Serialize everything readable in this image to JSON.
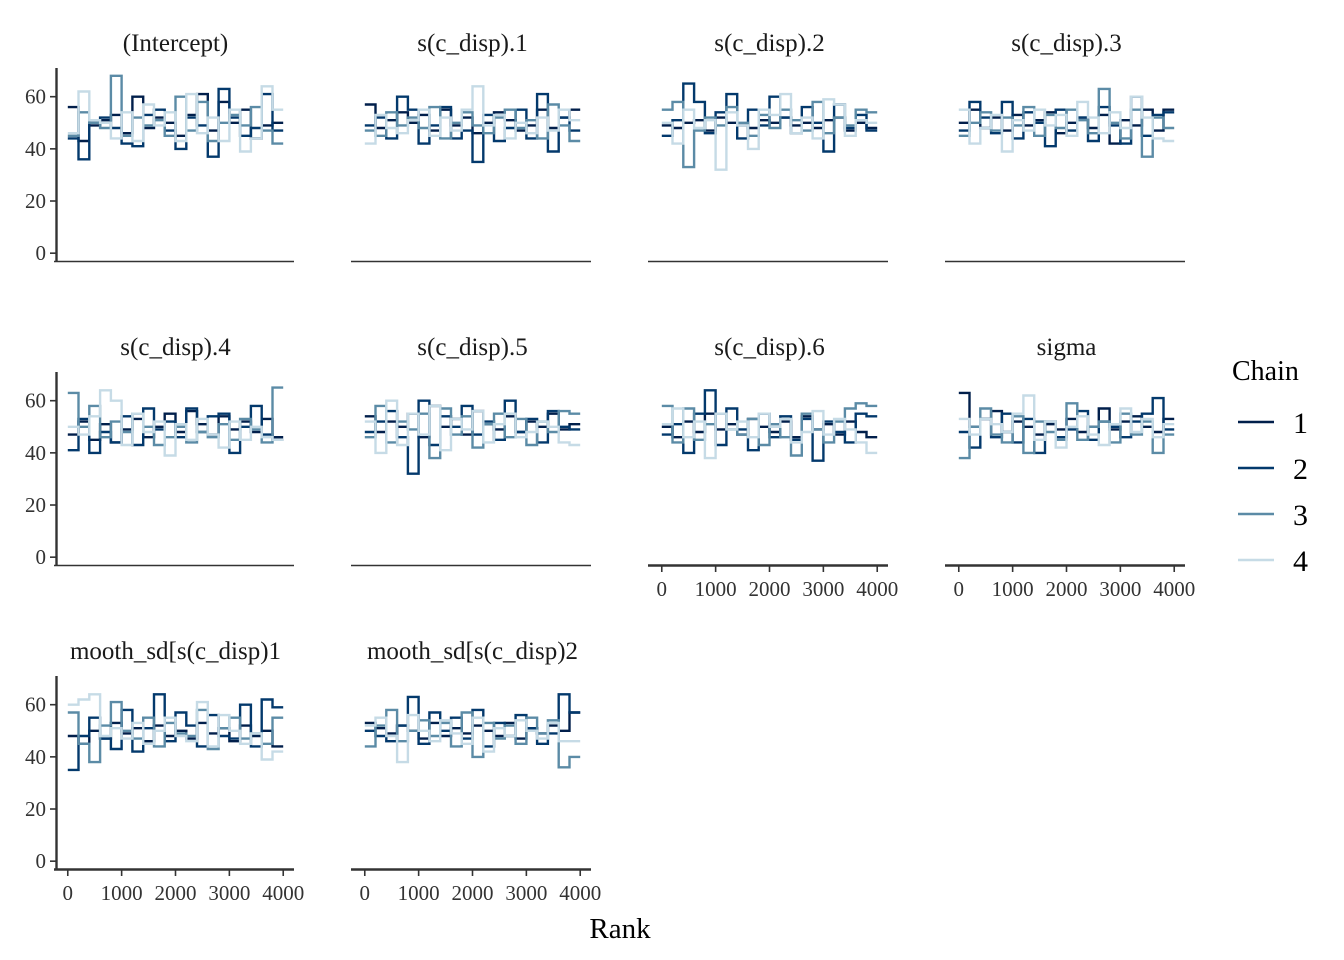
{
  "chart_data": {
    "type": "line",
    "plot_style": "rank-histogram-step",
    "xlabel": "Rank",
    "ylabel": "",
    "x_ticks": [
      0,
      1000,
      2000,
      3000,
      4000
    ],
    "y_ticks": [
      0,
      20,
      40,
      60
    ],
    "xlim": [
      -200,
      4200
    ],
    "ylim": [
      -3,
      71
    ],
    "bins": 20,
    "bin_width": 200,
    "legend": {
      "title": "Chain",
      "position": "right",
      "entries": [
        "1",
        "2",
        "3",
        "4"
      ]
    },
    "colors": [
      "#011f4b",
      "#03396c",
      "#5b8ba6",
      "#c6dbe6"
    ],
    "panels": [
      {
        "title": "(Intercept)",
        "series": [
          [
            56,
            43,
            49,
            51,
            53,
            46,
            60,
            48,
            52,
            50,
            45,
            53,
            61,
            47,
            58,
            50,
            55,
            44,
            49,
            50
          ],
          [
            44,
            36,
            50,
            52,
            48,
            42,
            41,
            53,
            55,
            47,
            40,
            52,
            49,
            37,
            63,
            52,
            45,
            48,
            61,
            47
          ],
          [
            45,
            54,
            50,
            48,
            68,
            45,
            52,
            49,
            51,
            45,
            60,
            47,
            58,
            43,
            50,
            53,
            49,
            56,
            47,
            42
          ],
          [
            46,
            62,
            51,
            50,
            44,
            54,
            43,
            57,
            49,
            54,
            43,
            61,
            46,
            52,
            43,
            55,
            39,
            44,
            64,
            55
          ]
        ]
      },
      {
        "title": "s(c_disp).1",
        "series": [
          [
            57,
            48,
            51,
            54,
            50,
            53,
            47,
            55,
            49,
            52,
            46,
            50,
            54,
            51,
            47,
            49,
            55,
            48,
            52,
            55
          ],
          [
            49,
            52,
            44,
            60,
            55,
            42,
            49,
            56,
            44,
            47,
            35,
            53,
            43,
            48,
            55,
            44,
            61,
            39,
            52,
            47
          ],
          [
            47,
            45,
            54,
            49,
            52,
            48,
            56,
            44,
            50,
            54,
            49,
            46,
            52,
            55,
            48,
            51,
            44,
            57,
            49,
            43
          ],
          [
            42,
            53,
            48,
            46,
            51,
            55,
            45,
            52,
            47,
            55,
            64,
            49,
            53,
            44,
            50,
            46,
            52,
            47,
            55,
            51
          ]
        ]
      },
      {
        "title": "s(c_disp).2",
        "series": [
          [
            49,
            48,
            50,
            51,
            47,
            52,
            50,
            49,
            48,
            51,
            50,
            52,
            49,
            50,
            48,
            51,
            52,
            47,
            50,
            48
          ],
          [
            45,
            51,
            65,
            58,
            46,
            54,
            61,
            44,
            55,
            49,
            60,
            52,
            46,
            56,
            50,
            39,
            57,
            48,
            53,
            47
          ],
          [
            55,
            58,
            33,
            47,
            52,
            49,
            56,
            50,
            45,
            53,
            48,
            55,
            51,
            47,
            58,
            46,
            52,
            49,
            55,
            54
          ],
          [
            50,
            42,
            55,
            48,
            51,
            32,
            54,
            49,
            40,
            55,
            53,
            61,
            46,
            52,
            44,
            59,
            57,
            45,
            51,
            50
          ]
        ]
      },
      {
        "title": "s(c_disp).3",
        "series": [
          [
            50,
            55,
            48,
            52,
            47,
            53,
            49,
            51,
            54,
            46,
            50,
            52,
            48,
            53,
            42,
            51,
            49,
            55,
            47,
            55
          ],
          [
            47,
            58,
            52,
            46,
            58,
            44,
            54,
            50,
            41,
            55,
            47,
            52,
            43,
            56,
            49,
            42,
            60,
            45,
            53,
            54
          ],
          [
            45,
            50,
            54,
            47,
            52,
            49,
            56,
            45,
            53,
            48,
            55,
            51,
            46,
            63,
            50,
            44,
            55,
            37,
            52,
            48
          ],
          [
            55,
            42,
            48,
            53,
            39,
            51,
            47,
            55,
            49,
            53,
            45,
            58,
            52,
            46,
            54,
            48,
            60,
            52,
            44,
            43
          ]
        ]
      },
      {
        "title": "s(c_disp).4",
        "series": [
          [
            47,
            52,
            45,
            51,
            44,
            49,
            53,
            46,
            50,
            55,
            48,
            56,
            51,
            47,
            54,
            49,
            52,
            48,
            53,
            46
          ],
          [
            41,
            53,
            40,
            48,
            44,
            54,
            43,
            57,
            49,
            52,
            46,
            57,
            48,
            54,
            55,
            40,
            50,
            58,
            47,
            45
          ],
          [
            63,
            50,
            58,
            46,
            52,
            48,
            55,
            50,
            43,
            46,
            50,
            44,
            48,
            46,
            51,
            45,
            53,
            49,
            44,
            65
          ],
          [
            50,
            47,
            54,
            64,
            60,
            43,
            55,
            48,
            52,
            39,
            51,
            45,
            53,
            47,
            42,
            52,
            45,
            50,
            46,
            45
          ]
        ]
      },
      {
        "title": "s(c_disp).5",
        "series": [
          [
            54,
            48,
            52,
            50,
            55,
            46,
            58,
            50,
            53,
            47,
            56,
            51,
            49,
            54,
            48,
            52,
            50,
            55,
            49,
            51
          ],
          [
            48,
            52,
            56,
            46,
            32,
            60,
            43,
            54,
            50,
            58,
            47,
            52,
            45,
            60,
            48,
            53,
            44,
            56,
            50,
            49
          ],
          [
            46,
            58,
            44,
            52,
            49,
            55,
            38,
            57,
            47,
            54,
            42,
            51,
            55,
            46,
            53,
            43,
            52,
            48,
            56,
            55
          ],
          [
            52,
            40,
            60,
            43,
            55,
            47,
            58,
            41,
            53,
            49,
            56,
            44,
            51,
            55,
            46,
            48,
            52,
            50,
            44,
            43
          ]
        ]
      },
      {
        "title": "s(c_disp).6",
        "series": [
          [
            50,
            46,
            52,
            48,
            55,
            49,
            51,
            47,
            53,
            50,
            48,
            52,
            46,
            54,
            49,
            51,
            47,
            52,
            48,
            46
          ],
          [
            47,
            51,
            40,
            55,
            64,
            43,
            57,
            49,
            41,
            55,
            46,
            54,
            45,
            53,
            37,
            52,
            48,
            44,
            55,
            54
          ],
          [
            58,
            44,
            57,
            45,
            51,
            55,
            49,
            47,
            53,
            43,
            51,
            46,
            39,
            55,
            49,
            44,
            52,
            57,
            59,
            58
          ],
          [
            51,
            57,
            46,
            52,
            38,
            55,
            49,
            52,
            46,
            55,
            50,
            53,
            44,
            48,
            56,
            47,
            53,
            49,
            44,
            40
          ]
        ]
      },
      {
        "title": "sigma",
        "series": [
          [
            63,
            50,
            53,
            56,
            48,
            52,
            50,
            47,
            51,
            49,
            53,
            48,
            50,
            57,
            49,
            52,
            54,
            50,
            48,
            53
          ],
          [
            48,
            42,
            53,
            46,
            55,
            44,
            53,
            40,
            52,
            46,
            49,
            56,
            45,
            52,
            50,
            46,
            52,
            55,
            61,
            49
          ],
          [
            38,
            50,
            57,
            47,
            44,
            54,
            40,
            52,
            48,
            45,
            59,
            45,
            50,
            52,
            44,
            55,
            47,
            52,
            40,
            47
          ],
          [
            53,
            47,
            53,
            51,
            48,
            55,
            62,
            45,
            52,
            42,
            50,
            54,
            47,
            43,
            51,
            57,
            48,
            53,
            46,
            51
          ]
        ]
      },
      {
        "title": "mooth_sd[s(c_disp)1",
        "series": [
          [
            48,
            45,
            50,
            47,
            53,
            49,
            51,
            46,
            52,
            48,
            50,
            47,
            53,
            49,
            51,
            46,
            52,
            48,
            50,
            44
          ],
          [
            35,
            48,
            55,
            47,
            43,
            58,
            42,
            51,
            64,
            46,
            57,
            52,
            44,
            56,
            48,
            47,
            60,
            44,
            62,
            59
          ],
          [
            57,
            45,
            38,
            52,
            61,
            50,
            47,
            55,
            44,
            53,
            49,
            48,
            58,
            43,
            51,
            55,
            47,
            49,
            45,
            55
          ],
          [
            60,
            62,
            64,
            48,
            51,
            47,
            53,
            45,
            50,
            55,
            48,
            46,
            61,
            44,
            56,
            50,
            45,
            49,
            39,
            42
          ]
        ]
      },
      {
        "title": "mooth_sd[s(c_disp)2",
        "series": [
          [
            53,
            51,
            49,
            52,
            50,
            47,
            53,
            48,
            51,
            49,
            52,
            50,
            48,
            53,
            47,
            51,
            49,
            52,
            50,
            57
          ],
          [
            50,
            48,
            46,
            52,
            63,
            45,
            57,
            50,
            55,
            47,
            58,
            44,
            53,
            48,
            56,
            51,
            45,
            49,
            64,
            57
          ],
          [
            44,
            52,
            58,
            46,
            50,
            54,
            48,
            53,
            44,
            57,
            40,
            53,
            47,
            52,
            45,
            55,
            49,
            54,
            36,
            40
          ],
          [
            52,
            55,
            48,
            38,
            56,
            50,
            46,
            54,
            49,
            45,
            55,
            42,
            51,
            48,
            54,
            50,
            47,
            53,
            46,
            46
          ]
        ]
      }
    ]
  }
}
